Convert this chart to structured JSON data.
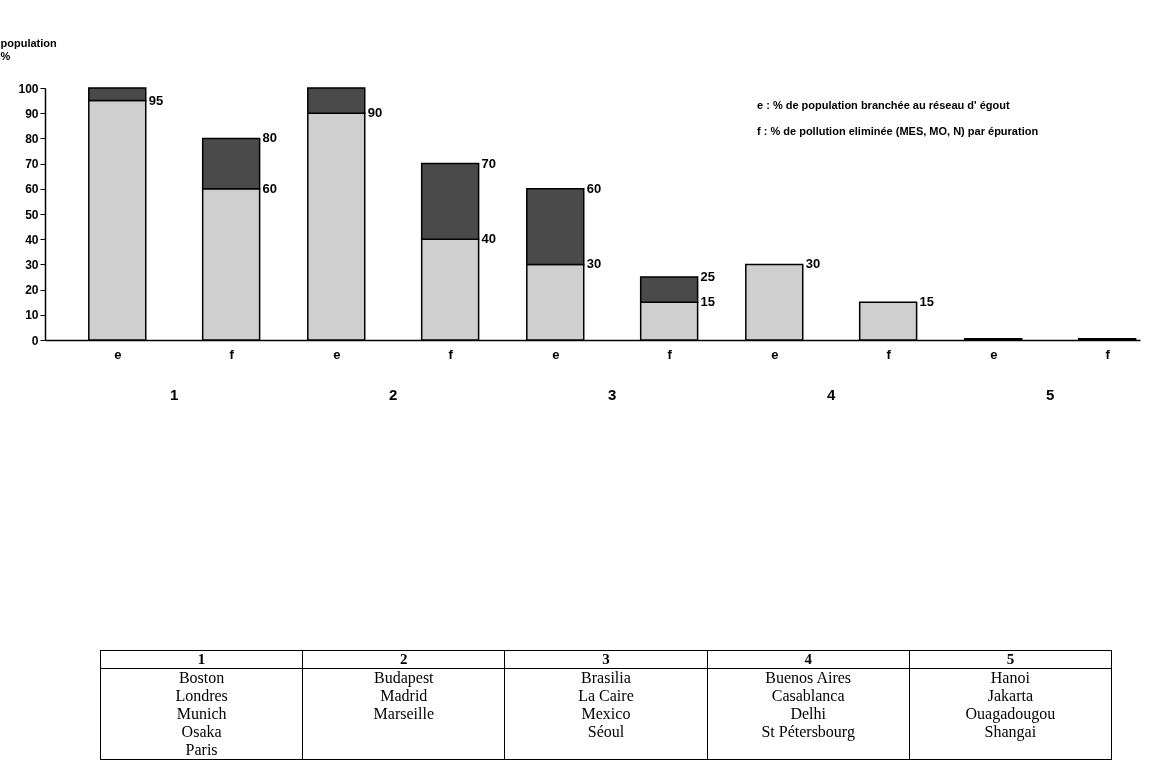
{
  "chart_data": {
    "type": "bar",
    "stacked": true,
    "ylabel": "population\n%",
    "categories": [
      "e",
      "f",
      "e",
      "f",
      "e",
      "f",
      "e",
      "f",
      "e",
      "f"
    ],
    "ylim": [
      0,
      100
    ],
    "yticks": [
      0,
      10,
      20,
      30,
      40,
      50,
      60,
      70,
      80,
      90,
      100
    ],
    "grid": false,
    "series": [
      {
        "color": "#cfcfcf",
        "values": [
          95,
          60,
          90,
          40,
          30,
          15,
          30,
          15,
          0.5,
          0.5
        ],
        "value_labels": [
          "95",
          "60",
          "90",
          "40",
          "30",
          "15",
          "30",
          "15",
          null,
          null
        ]
      },
      {
        "color": "#4a4a4a",
        "values": [
          5,
          20,
          10,
          30,
          30,
          10,
          null,
          null,
          null,
          null
        ]
      }
    ],
    "totals": [
      null,
      "80",
      null,
      "70",
      "60",
      "25",
      null,
      null,
      null,
      null
    ],
    "annotations": [
      "e :  % de population branchée au réseau d' égout",
      "f :  % de pollution eliminée (MES, MO, N) par épuration",
      "1",
      "2",
      "3",
      "4",
      "5",
      "1",
      "2",
      "3",
      "4",
      "5",
      "Boston\nLondres\nMunich\nOsaka\nParis",
      "Budapest\nMadrid\nMarseille",
      "Brasilia\nLa Caire\nMexico\nSéoul",
      "Buenos Aires\nCasablanca\nDelhi\nSt Pétersbourg",
      "Hanoi\nJakarta\nOuagadougou\nShangai"
    ]
  }
}
